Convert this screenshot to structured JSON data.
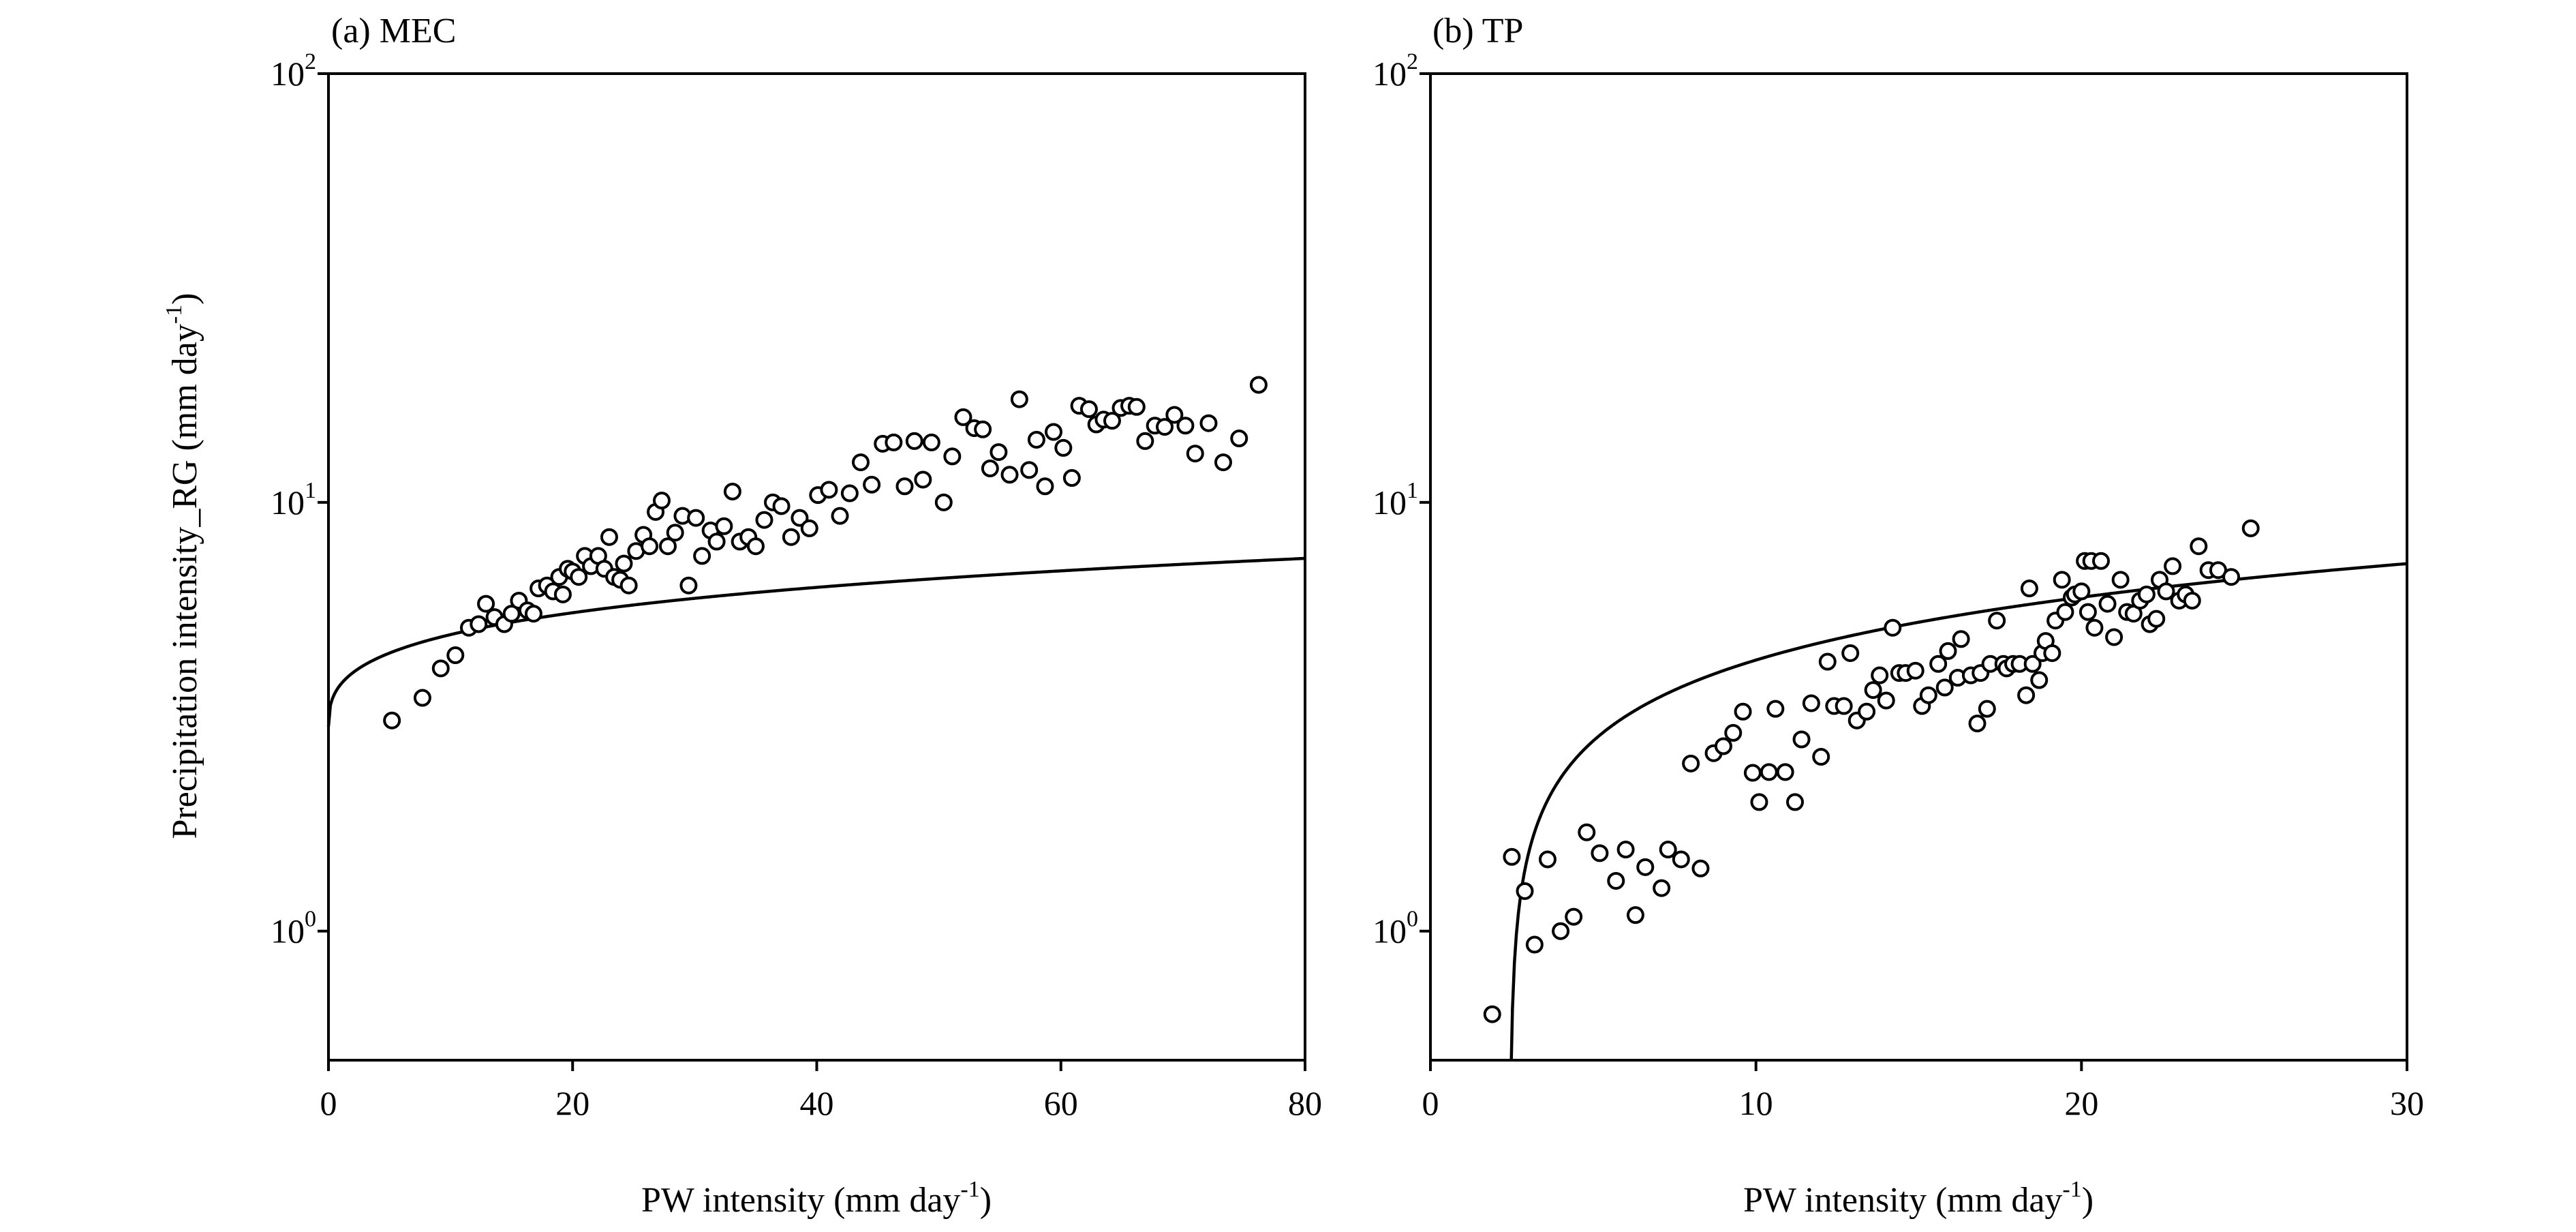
{
  "chart_data": [
    {
      "type": "scatter",
      "title": "(a) MEC",
      "xlabel": "PW intensity (mm day",
      "xlabel_sup": "-1",
      "xlabel_tail": ")",
      "ylabel": "Precipitation intensity_RG (mm day",
      "ylabel_sup": "-1",
      "ylabel_tail": ")",
      "xlim": [
        0,
        80
      ],
      "ylim": [
        0.5,
        100
      ],
      "yscale": "log",
      "xticks": [
        0,
        20,
        40,
        60,
        80
      ],
      "xtick_labels": [
        "0",
        "20",
        "40",
        "60",
        "80"
      ],
      "yticks": [
        1,
        10,
        100
      ],
      "ytick_labels": [
        {
          "base": "10",
          "exp": "0"
        },
        {
          "base": "10",
          "exp": "1"
        },
        {
          "base": "10",
          "exp": "2"
        }
      ],
      "grid": false,
      "fit": {
        "a": 3.0,
        "b": 0.7627,
        "c": 0.4
      },
      "points": [
        [
          5.2,
          3.1
        ],
        [
          7.7,
          3.5
        ],
        [
          9.2,
          4.1
        ],
        [
          10.4,
          4.4
        ],
        [
          11.5,
          5.1
        ],
        [
          12.3,
          5.2
        ],
        [
          12.9,
          5.8
        ],
        [
          13.6,
          5.4
        ],
        [
          14.4,
          5.2
        ],
        [
          15.0,
          5.5
        ],
        [
          15.6,
          5.9
        ],
        [
          16.3,
          5.6
        ],
        [
          16.8,
          5.5
        ],
        [
          17.2,
          6.3
        ],
        [
          17.9,
          6.4
        ],
        [
          18.4,
          6.2
        ],
        [
          18.9,
          6.7
        ],
        [
          19.2,
          6.1
        ],
        [
          19.6,
          7.0
        ],
        [
          20.0,
          6.9
        ],
        [
          20.5,
          6.7
        ],
        [
          21.0,
          7.5
        ],
        [
          21.5,
          7.1
        ],
        [
          22.1,
          7.5
        ],
        [
          22.6,
          7.0
        ],
        [
          23.0,
          8.3
        ],
        [
          23.4,
          6.7
        ],
        [
          23.9,
          6.6
        ],
        [
          24.2,
          7.2
        ],
        [
          24.6,
          6.4
        ],
        [
          25.2,
          7.7
        ],
        [
          25.8,
          8.4
        ],
        [
          26.3,
          7.9
        ],
        [
          26.8,
          9.5
        ],
        [
          27.3,
          10.1
        ],
        [
          27.8,
          7.9
        ],
        [
          28.4,
          8.5
        ],
        [
          29.0,
          9.3
        ],
        [
          29.5,
          6.4
        ],
        [
          30.1,
          9.2
        ],
        [
          30.6,
          7.5
        ],
        [
          31.3,
          8.6
        ],
        [
          31.8,
          8.1
        ],
        [
          32.4,
          8.8
        ],
        [
          33.1,
          10.6
        ],
        [
          33.7,
          8.1
        ],
        [
          34.4,
          8.3
        ],
        [
          35.0,
          7.9
        ],
        [
          35.7,
          9.1
        ],
        [
          36.4,
          10.0
        ],
        [
          37.1,
          9.8
        ],
        [
          37.9,
          8.3
        ],
        [
          38.6,
          9.2
        ],
        [
          39.4,
          8.7
        ],
        [
          40.1,
          10.4
        ],
        [
          41.0,
          10.7
        ],
        [
          41.9,
          9.3
        ],
        [
          42.7,
          10.5
        ],
        [
          43.6,
          12.4
        ],
        [
          44.5,
          11.0
        ],
        [
          45.4,
          13.7
        ],
        [
          46.3,
          13.8
        ],
        [
          47.2,
          10.9
        ],
        [
          48.0,
          13.9
        ],
        [
          48.7,
          11.3
        ],
        [
          49.4,
          13.8
        ],
        [
          50.4,
          10.0
        ],
        [
          51.1,
          12.8
        ],
        [
          52.0,
          15.8
        ],
        [
          52.9,
          14.9
        ],
        [
          53.6,
          14.8
        ],
        [
          54.2,
          12.0
        ],
        [
          54.9,
          13.1
        ],
        [
          55.8,
          11.6
        ],
        [
          56.6,
          17.4
        ],
        [
          57.4,
          11.9
        ],
        [
          58.0,
          14.0
        ],
        [
          58.7,
          10.9
        ],
        [
          59.4,
          14.6
        ],
        [
          60.2,
          13.4
        ],
        [
          60.9,
          11.4
        ],
        [
          61.5,
          16.8
        ],
        [
          62.3,
          16.5
        ],
        [
          62.9,
          15.2
        ],
        [
          63.5,
          15.6
        ],
        [
          64.2,
          15.5
        ],
        [
          64.9,
          16.6
        ],
        [
          65.6,
          16.8
        ],
        [
          66.2,
          16.7
        ],
        [
          66.9,
          13.9
        ],
        [
          67.7,
          15.1
        ],
        [
          68.5,
          15.0
        ],
        [
          69.3,
          16.0
        ],
        [
          70.2,
          15.1
        ],
        [
          71.0,
          13.0
        ],
        [
          72.1,
          15.3
        ],
        [
          73.3,
          12.4
        ],
        [
          74.6,
          14.1
        ],
        [
          76.2,
          18.8
        ]
      ]
    },
    {
      "type": "scatter",
      "title": "(b) TP",
      "xlabel": "PW intensity (mm day",
      "xlabel_sup": "-1",
      "xlabel_tail": ")",
      "xlim": [
        0,
        30
      ],
      "ylim": [
        0.5,
        100
      ],
      "yscale": "log",
      "xticks": [
        0,
        10,
        20,
        30
      ],
      "xtick_labels": [
        "0",
        "10",
        "20",
        "30"
      ],
      "yticks": [
        1,
        10,
        100
      ],
      "ytick_labels": [
        {
          "base": "10",
          "exp": "0"
        },
        {
          "base": "10",
          "exp": "1"
        },
        {
          "base": "10",
          "exp": "2"
        }
      ],
      "grid": false,
      "fit": {
        "x0": 2.45,
        "b": 1.91,
        "c": 0.4
      },
      "points": [
        [
          1.9,
          0.64
        ],
        [
          2.5,
          1.49
        ],
        [
          2.9,
          1.24
        ],
        [
          3.2,
          0.93
        ],
        [
          3.6,
          1.47
        ],
        [
          4.0,
          1.0
        ],
        [
          4.4,
          1.08
        ],
        [
          4.8,
          1.7
        ],
        [
          5.2,
          1.52
        ],
        [
          5.7,
          1.31
        ],
        [
          6.0,
          1.55
        ],
        [
          6.3,
          1.09
        ],
        [
          6.6,
          1.41
        ],
        [
          7.1,
          1.26
        ],
        [
          7.3,
          1.55
        ],
        [
          7.7,
          1.47
        ],
        [
          8.3,
          1.4
        ],
        [
          8.0,
          2.46
        ],
        [
          8.7,
          2.6
        ],
        [
          9.0,
          2.7
        ],
        [
          9.3,
          2.9
        ],
        [
          9.6,
          3.25
        ],
        [
          9.9,
          2.34
        ],
        [
          10.1,
          2.0
        ],
        [
          10.4,
          2.35
        ],
        [
          10.6,
          3.3
        ],
        [
          10.9,
          2.35
        ],
        [
          11.2,
          2.0
        ],
        [
          11.4,
          2.8
        ],
        [
          11.7,
          3.4
        ],
        [
          12.0,
          2.55
        ],
        [
          12.2,
          4.25
        ],
        [
          12.4,
          3.35
        ],
        [
          12.7,
          3.35
        ],
        [
          12.9,
          4.45
        ],
        [
          13.1,
          3.1
        ],
        [
          13.4,
          3.25
        ],
        [
          13.6,
          3.65
        ],
        [
          13.8,
          3.95
        ],
        [
          14.0,
          3.45
        ],
        [
          14.2,
          5.1
        ],
        [
          14.4,
          4.0
        ],
        [
          14.6,
          4.0
        ],
        [
          14.9,
          4.05
        ],
        [
          15.1,
          3.35
        ],
        [
          15.3,
          3.55
        ],
        [
          15.6,
          4.2
        ],
        [
          15.8,
          3.7
        ],
        [
          15.9,
          4.5
        ],
        [
          16.2,
          3.9
        ],
        [
          16.3,
          4.8
        ],
        [
          16.6,
          3.95
        ],
        [
          16.8,
          3.05
        ],
        [
          16.9,
          4.0
        ],
        [
          17.1,
          3.3
        ],
        [
          17.2,
          4.2
        ],
        [
          17.4,
          5.3
        ],
        [
          17.6,
          4.2
        ],
        [
          17.7,
          4.1
        ],
        [
          17.9,
          4.2
        ],
        [
          18.1,
          4.2
        ],
        [
          18.3,
          3.55
        ],
        [
          18.5,
          4.2
        ],
        [
          18.4,
          6.3
        ],
        [
          18.7,
          3.85
        ],
        [
          18.8,
          4.45
        ],
        [
          18.9,
          4.75
        ],
        [
          19.1,
          4.45
        ],
        [
          19.2,
          5.3
        ],
        [
          19.4,
          6.6
        ],
        [
          19.5,
          5.55
        ],
        [
          19.7,
          6.0
        ],
        [
          19.8,
          6.1
        ],
        [
          20.0,
          6.2
        ],
        [
          20.1,
          7.3
        ],
        [
          20.2,
          5.55
        ],
        [
          20.3,
          7.3
        ],
        [
          20.4,
          5.1
        ],
        [
          20.6,
          7.3
        ],
        [
          20.8,
          5.8
        ],
        [
          21.0,
          4.85
        ],
        [
          21.2,
          6.6
        ],
        [
          21.4,
          5.55
        ],
        [
          21.6,
          5.5
        ],
        [
          21.8,
          5.9
        ],
        [
          22.0,
          6.1
        ],
        [
          22.1,
          5.2
        ],
        [
          22.3,
          5.35
        ],
        [
          22.4,
          6.6
        ],
        [
          22.6,
          6.2
        ],
        [
          22.8,
          7.1
        ],
        [
          23.0,
          5.9
        ],
        [
          23.2,
          6.1
        ],
        [
          23.4,
          5.9
        ],
        [
          23.6,
          7.9
        ],
        [
          23.9,
          6.95
        ],
        [
          24.2,
          6.95
        ],
        [
          24.6,
          6.7
        ],
        [
          25.2,
          8.7
        ]
      ]
    }
  ]
}
